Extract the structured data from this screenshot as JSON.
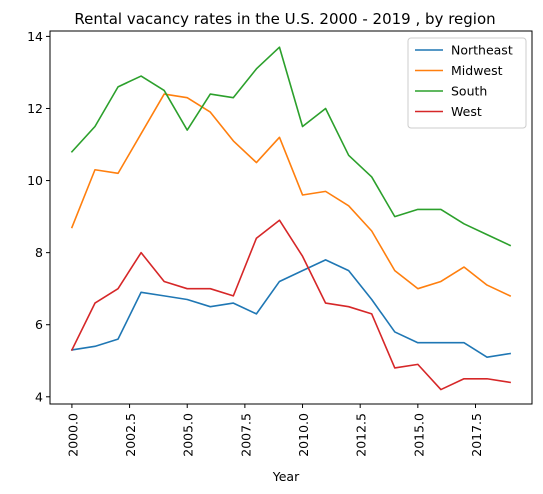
{
  "chart_data": {
    "type": "line",
    "title": "Rental vacancy rates in the U.S. 2000 - 2019 , by region",
    "xlabel": "Year",
    "ylabel": "",
    "xlim": [
      1999.05,
      2019.95
    ],
    "ylim": [
      3.8,
      14.15
    ],
    "x_ticks": [
      "2000.0",
      "2002.5",
      "2005.0",
      "2007.5",
      "2010.0",
      "2012.5",
      "2015.0",
      "2017.5"
    ],
    "y_ticks": [
      "4",
      "6",
      "8",
      "10",
      "12",
      "14"
    ],
    "grid": false,
    "legend_position": "top-right",
    "x": [
      2000,
      2001,
      2002,
      2003,
      2004,
      2005,
      2006,
      2007,
      2008,
      2009,
      2010,
      2011,
      2012,
      2013,
      2014,
      2015,
      2016,
      2017,
      2018,
      2019
    ],
    "series": [
      {
        "name": "Northeast",
        "color": "#1f77b4",
        "values": [
          5.3,
          5.4,
          5.6,
          6.9,
          6.8,
          6.7,
          6.5,
          6.6,
          6.3,
          7.2,
          7.5,
          7.8,
          7.5,
          6.7,
          5.8,
          5.5,
          5.5,
          5.5,
          5.1,
          5.2
        ]
      },
      {
        "name": "Midwest",
        "color": "#ff7f0e",
        "values": [
          8.7,
          10.3,
          10.2,
          11.3,
          12.4,
          12.3,
          11.9,
          11.1,
          10.5,
          11.2,
          9.6,
          9.7,
          9.3,
          8.6,
          7.5,
          7.0,
          7.2,
          7.6,
          7.1,
          6.8
        ]
      },
      {
        "name": "South",
        "color": "#2ca02c",
        "values": [
          10.8,
          11.5,
          12.6,
          12.9,
          12.5,
          11.4,
          12.4,
          12.3,
          13.1,
          13.7,
          11.5,
          12.0,
          10.7,
          10.1,
          9.0,
          9.2,
          9.2,
          8.8,
          8.5,
          8.2
        ]
      },
      {
        "name": "West",
        "color": "#d62728",
        "values": [
          5.3,
          6.6,
          7.0,
          8.0,
          7.2,
          7.0,
          7.0,
          6.8,
          8.4,
          8.9,
          7.9,
          6.6,
          6.5,
          6.3,
          4.8,
          4.9,
          4.2,
          4.5,
          4.5,
          4.4
        ]
      }
    ]
  }
}
